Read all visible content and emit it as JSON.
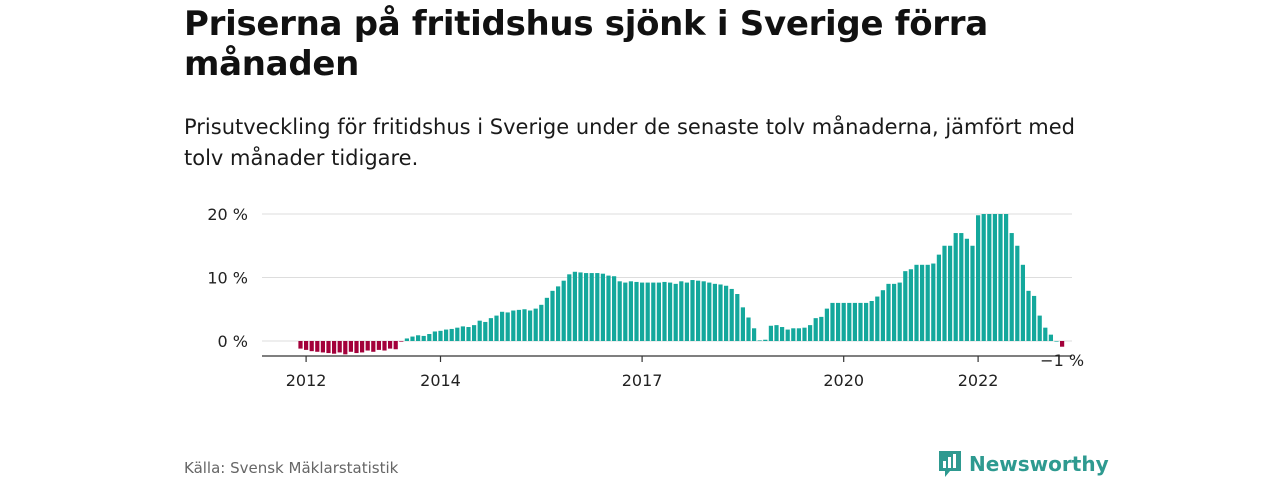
{
  "title": "Priserna på fritidshus sjönk i Sverige förra månaden",
  "subtitle": "Prisutveckling för fritidshus i Sverige under de senaste tolv månaderna, jämfört med tolv månader tidigare.",
  "source": "Källa: Svensk Mäklarstatistik",
  "brand": "Newsworthy",
  "colors": {
    "positive": "#14a89c",
    "negative": "#a3003a",
    "grid": "#dddddd",
    "axis": "#333333",
    "brand": "#2e9a90"
  },
  "chart_data": {
    "type": "bar",
    "title": "Priserna på fritidshus sjönk i Sverige förra månaden",
    "xlabel": "",
    "ylabel": "",
    "start": "2011-12",
    "end": "2022-12",
    "y_ticks": [
      0,
      10,
      20
    ],
    "y_tick_labels": [
      "0 %",
      "10 %",
      "20 %"
    ],
    "x_tick_labels": [
      "2012",
      "2014",
      "2017",
      "2020",
      "2022"
    ],
    "ylim": [
      -2.5,
      20
    ],
    "grid": true,
    "last_value_label": "−1 %",
    "values": [
      -1.2,
      -1.4,
      -1.6,
      -1.7,
      -1.8,
      -1.9,
      -2.0,
      -1.8,
      -2.1,
      -1.7,
      -1.9,
      -1.8,
      -1.5,
      -1.7,
      -1.4,
      -1.5,
      -1.2,
      -1.3,
      -0.1,
      0.4,
      0.7,
      0.9,
      0.8,
      1.1,
      1.5,
      1.6,
      1.8,
      1.9,
      2.1,
      2.3,
      2.2,
      2.5,
      3.2,
      3.0,
      3.6,
      4.0,
      4.6,
      4.5,
      4.8,
      4.9,
      5.0,
      4.8,
      5.1,
      5.7,
      6.8,
      7.9,
      8.6,
      9.5,
      10.5,
      10.9,
      10.8,
      10.7,
      10.7,
      10.7,
      10.6,
      10.3,
      10.2,
      9.4,
      9.2,
      9.4,
      9.3,
      9.2,
      9.2,
      9.2,
      9.2,
      9.3,
      9.2,
      9.0,
      9.4,
      9.2,
      9.6,
      9.5,
      9.4,
      9.2,
      9.0,
      8.9,
      8.7,
      8.2,
      7.4,
      5.3,
      3.7,
      2.0,
      0.1,
      0.2,
      2.4,
      2.5,
      2.2,
      1.8,
      2.0,
      2.0,
      2.1,
      2.5,
      3.6,
      3.8,
      5.1,
      6.0,
      6.0,
      6.0,
      6.0,
      6.0,
      6.0,
      6.0,
      6.3,
      7.0,
      8.0,
      9.0,
      9.0,
      9.2,
      11.0,
      11.3,
      12.0,
      12.0,
      12.0,
      12.2,
      13.6,
      15.0,
      15.0,
      17.0,
      17.0,
      16.1,
      15.0,
      19.8,
      20.0,
      20.0,
      20.0,
      20.0,
      20.0,
      17.0,
      15.0,
      12.0,
      7.9,
      7.1,
      4.0,
      2.1,
      1.0,
      0.0,
      -0.9
    ]
  }
}
